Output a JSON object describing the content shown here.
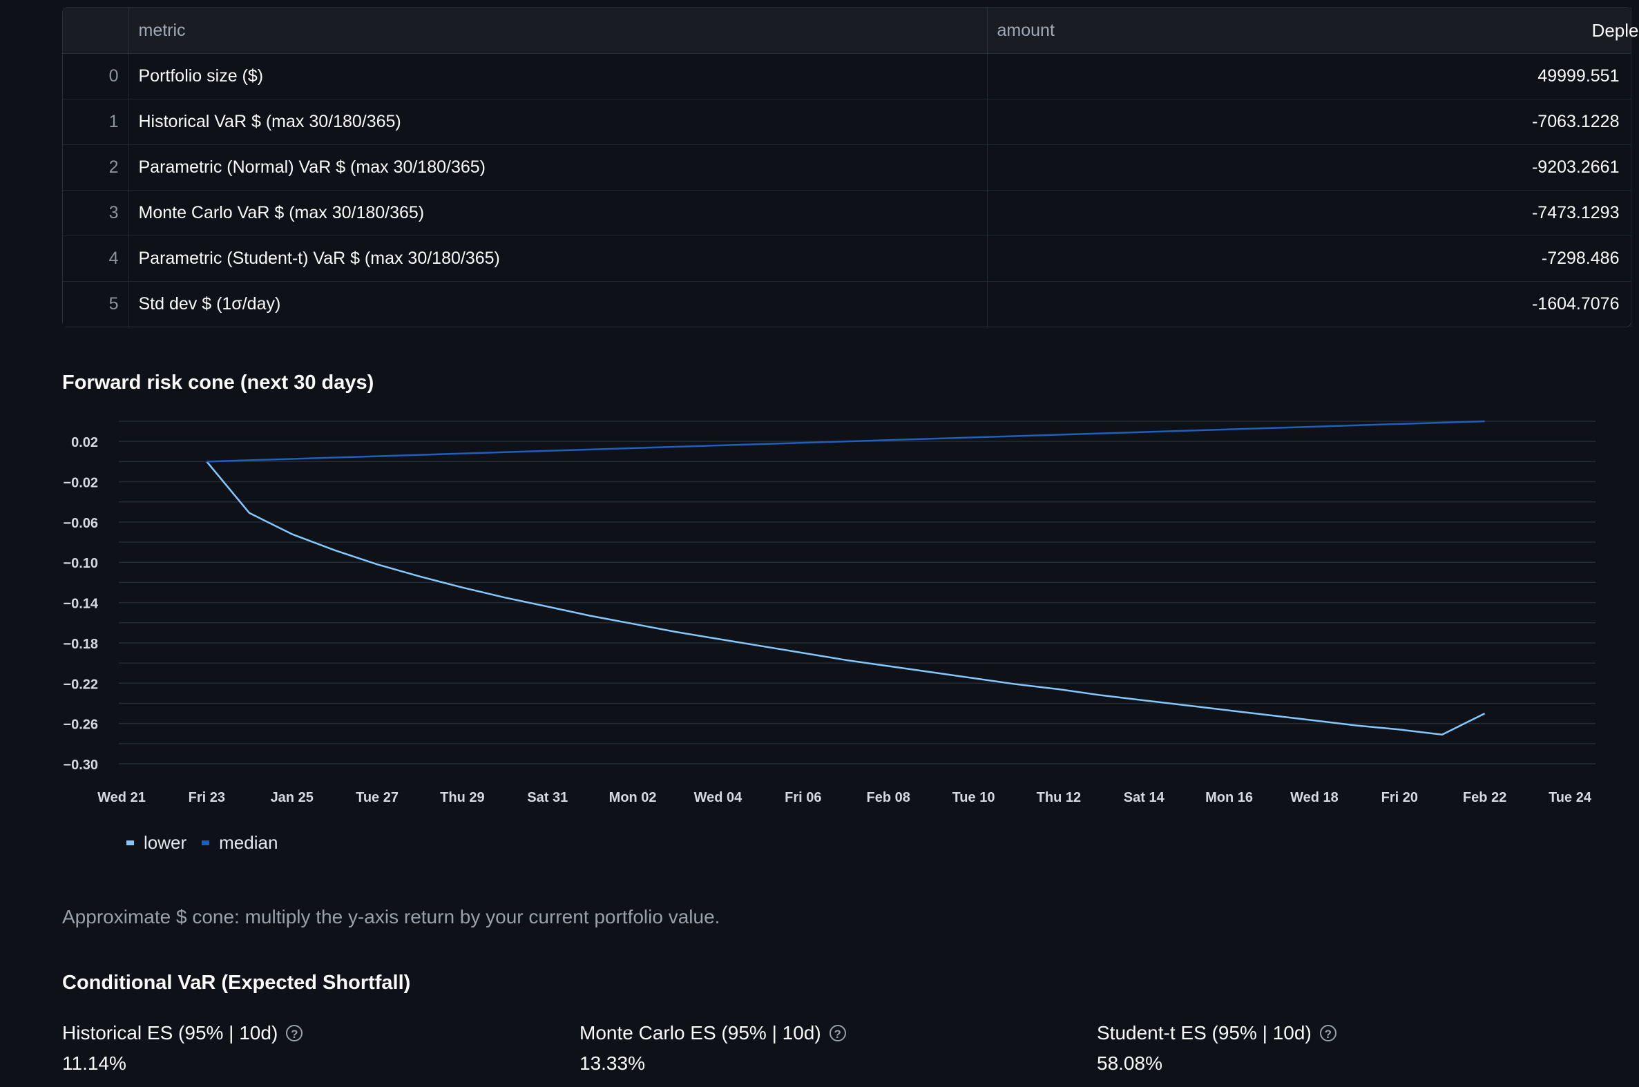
{
  "table": {
    "columns": [
      "",
      "metric",
      "amount",
      "Deple"
    ],
    "rows": [
      {
        "index": "0",
        "metric": "Portfolio size ($)",
        "amount": "49999.551"
      },
      {
        "index": "1",
        "metric": "Historical VaR $ (max 30/180/365)",
        "amount": "-7063.1228"
      },
      {
        "index": "2",
        "metric": "Parametric (Normal) VaR $ (max 30/180/365)",
        "amount": "-9203.2661"
      },
      {
        "index": "3",
        "metric": "Monte Carlo VaR $ (max 30/180/365)",
        "amount": "-7473.1293"
      },
      {
        "index": "4",
        "metric": "Parametric (Student-t) VaR $ (max 30/180/365)",
        "amount": "-7298.486"
      },
      {
        "index": "5",
        "metric": "Std dev $ (1σ/day)",
        "amount": "-1604.7076"
      }
    ]
  },
  "chart": {
    "title": "Forward risk cone (next 30 days)",
    "note": "Approximate $ cone: multiply the y-axis return by your current portfolio value."
  },
  "chart_data": {
    "type": "line",
    "x_tick_labels": [
      "Wed 21",
      "Fri 23",
      "Jan 25",
      "Tue 27",
      "Thu 29",
      "Sat 31",
      "Mon 02",
      "Wed 04",
      "Fri 06",
      "Feb 08",
      "Tue 10",
      "Thu 12",
      "Sat 14",
      "Mon 16",
      "Wed 18",
      "Fri 20",
      "Feb 22",
      "Tue 24"
    ],
    "x_range_days": [
      0,
      34
    ],
    "y_tick_labels": [
      "0.02",
      "−0.02",
      "−0.06",
      "−0.10",
      "−0.14",
      "−0.18",
      "−0.22",
      "−0.26",
      "−0.30"
    ],
    "y_ticks": [
      0.02,
      -0.02,
      -0.06,
      -0.1,
      -0.14,
      -0.18,
      -0.22,
      -0.26,
      -0.3
    ],
    "ylim": [
      -0.3,
      0.04
    ],
    "grid": true,
    "legend_position": "bottom-left",
    "series": [
      {
        "name": "lower",
        "color": "#83c9ff",
        "x_days": [
          2,
          3,
          4,
          5,
          6,
          7,
          8,
          9,
          10,
          11,
          12,
          13,
          14,
          15,
          16,
          17,
          18,
          19,
          20,
          21,
          22,
          23,
          24,
          25,
          26,
          27,
          28,
          29,
          30,
          31,
          32
        ],
        "values": [
          0.0,
          -0.051,
          -0.072,
          -0.088,
          -0.102,
          -0.114,
          -0.125,
          -0.135,
          -0.144,
          -0.153,
          -0.161,
          -0.169,
          -0.176,
          -0.183,
          -0.19,
          -0.197,
          -0.203,
          -0.209,
          -0.215,
          -0.221,
          -0.226,
          -0.232,
          -0.237,
          -0.242,
          -0.247,
          -0.252,
          -0.257,
          -0.262,
          -0.266,
          -0.271,
          -0.25
        ]
      },
      {
        "name": "median",
        "color": "#1f5fbf",
        "x_days": [
          2,
          32
        ],
        "values": [
          0.0,
          0.04
        ]
      }
    ]
  },
  "es_section": {
    "title": "Conditional VaR (Expected Shortfall)",
    "metrics": [
      {
        "label": "Historical ES (95% | 10d)",
        "value": "11.14%"
      },
      {
        "label": "Monte Carlo ES (95% | 10d)",
        "value": "13.33%"
      },
      {
        "label": "Student-t ES (95% | 10d)",
        "value": "58.08%"
      }
    ]
  }
}
